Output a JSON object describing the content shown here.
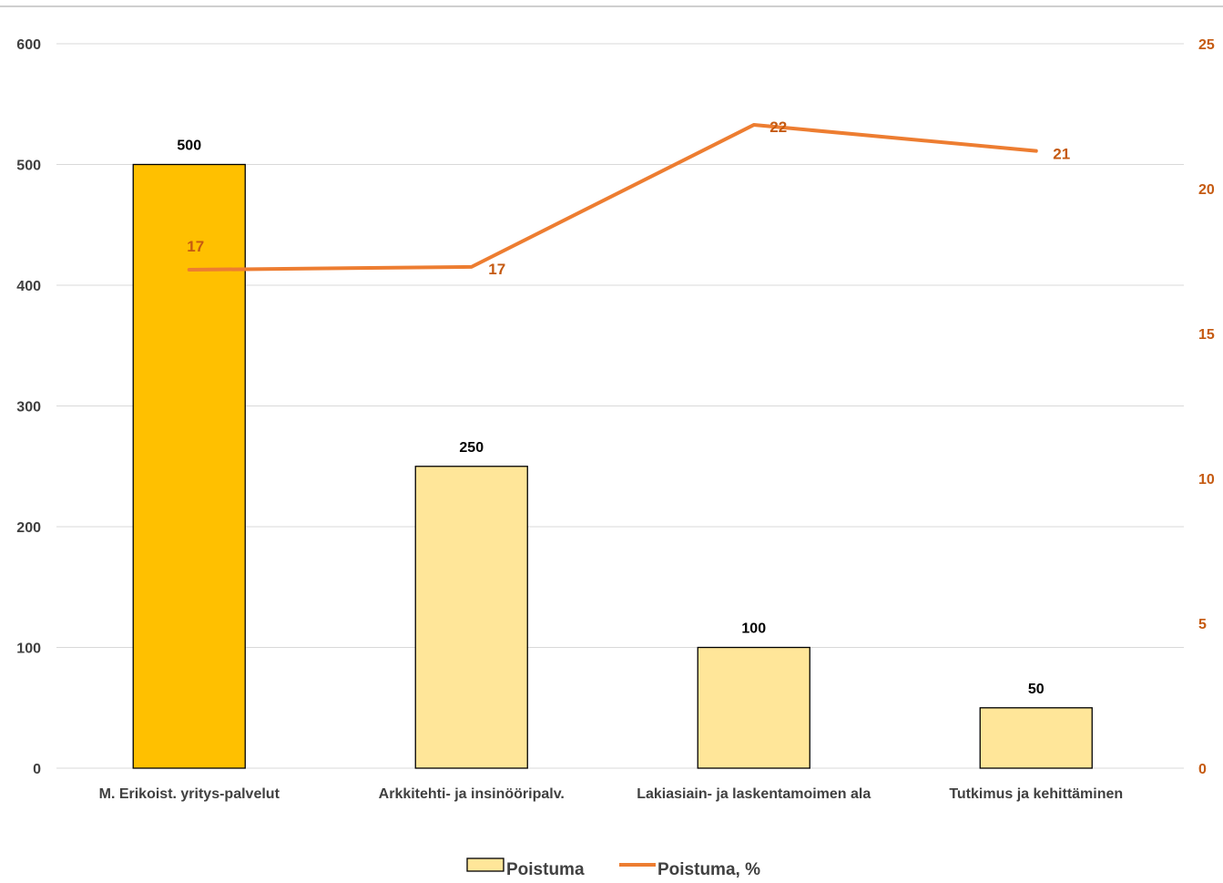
{
  "chart_data": {
    "type": "bar",
    "categories": [
      "M. Erikoist. yritys-palvelut",
      "Arkkitehti- ja insinööripalv.",
      "Lakiasiain- ja laskentamoimen ala",
      "Tutkimus ja kehittäminen"
    ],
    "series": [
      {
        "name": "Poistuma",
        "type": "bar",
        "axis": "left",
        "values": [
          500,
          250,
          100,
          50
        ],
        "data_labels": [
          "500",
          "250",
          "100",
          "50"
        ]
      },
      {
        "name": "Poistuma, %",
        "type": "line",
        "axis": "right",
        "values": [
          17.2,
          17.3,
          22.2,
          21.3
        ],
        "data_labels": [
          "17",
          "17",
          "22",
          "21"
        ]
      }
    ],
    "y_left": {
      "min": 0,
      "max": 600,
      "ticks": [
        "0",
        "100",
        "200",
        "300",
        "400",
        "500",
        "600"
      ]
    },
    "y_right": {
      "min": 0,
      "max": 25,
      "ticks": [
        "0",
        "5",
        "10",
        "15",
        "20",
        "25"
      ]
    },
    "grid": true,
    "legend": "bottom",
    "colors": {
      "bar_highlight": "#ffc000",
      "bar": "#ffe699",
      "bar_outline": "#000000",
      "line": "#ed7d31",
      "right_axis_text": "#c55a11",
      "left_axis_text": "#404040",
      "gridline": "#d9d9d9",
      "frame": "#bfbfbf"
    }
  }
}
